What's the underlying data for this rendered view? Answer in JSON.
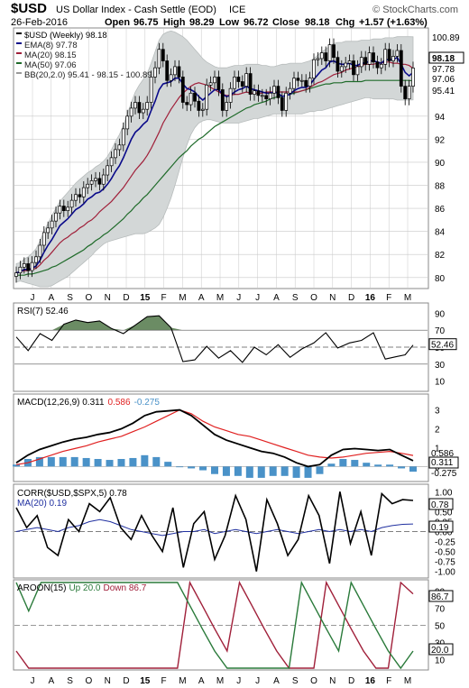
{
  "header": {
    "symbol": "$USD",
    "name": "US Dollar Index - Cash Settle (EOD)",
    "exchange": "ICE",
    "watermark": "© StockCharts.com",
    "date": "26-Feb-2016",
    "open_label": "Open",
    "open": "96.75",
    "high_label": "High",
    "high": "98.29",
    "low_label": "Low",
    "low": "96.72",
    "close_label": "Close",
    "close": "98.18",
    "chg_label": "Chg",
    "chg": "+1.57 (+1.63%)"
  },
  "colors": {
    "ema8": "#0a0a8a",
    "ma20": "#a0203a",
    "ma50": "#1f6b2a",
    "bb": "#b7bcbc",
    "macd_signal": "#e02020",
    "histogram": "#4a92c8",
    "rsi_fill": "#6b8c64",
    "corr_ma": "#2030a0",
    "aroon_up": "#2a7a3a",
    "aroon_down": "#a0203a",
    "grid": "#c8c8c8"
  },
  "chart_data": [
    {
      "type": "candlestick",
      "title": "$USD (Weekly) 98.18",
      "x_tick_labels": [
        "J",
        "A",
        "S",
        "O",
        "N",
        "D",
        "15",
        "F",
        "M",
        "A",
        "M",
        "J",
        "J",
        "A",
        "S",
        "O",
        "N",
        "D",
        "16",
        "F",
        "M"
      ],
      "y_ticks": [
        80,
        82,
        84,
        86,
        88,
        90,
        92,
        94
      ],
      "ylim": [
        79.2,
        101.5
      ],
      "legend": [
        {
          "name": "$USD (Weekly) 98.18",
          "color": "#000000"
        },
        {
          "name": "EMA(8) 97.78",
          "color": "#0a0a8a"
        },
        {
          "name": "MA(20) 98.15",
          "color": "#a0203a"
        },
        {
          "name": "MA(50) 97.06",
          "color": "#1f6b2a"
        },
        {
          "name": "BB(20,2.0) 95.41 - 98.15 - 100.89",
          "color": "#9a9a9a"
        }
      ],
      "last_value_tags": [
        {
          "label": "100.89",
          "value": 100.89,
          "style": "plain"
        },
        {
          "label": "98.18",
          "value": 98.18,
          "style": "boxed"
        },
        {
          "label": "97.78",
          "value": 97.78,
          "style": "plain"
        },
        {
          "label": "97.06",
          "value": 97.06,
          "style": "plain"
        },
        {
          "label": "95.41",
          "value": 95.41,
          "style": "plain"
        }
      ],
      "close": [
        80.4,
        80.9,
        81.2,
        80.6,
        81.3,
        81.8,
        82.8,
        83.9,
        84.3,
        84.9,
        85.6,
        86.2,
        85.8,
        86.1,
        86.7,
        87.2,
        87.0,
        87.8,
        88.1,
        88.4,
        88.6,
        88.1,
        88.9,
        89.7,
        90.4,
        91.1,
        91.5,
        92.9,
        94.0,
        94.7,
        95.2,
        94.3,
        94.6,
        95.2,
        97.4,
        98.2,
        99.8,
        98.8,
        97.1,
        97.6,
        98.3,
        97.4,
        95.2,
        95.0,
        96.0,
        95.3,
        94.5,
        94.6,
        96.7,
        96.9,
        97.4,
        96.3,
        94.5,
        95.2,
        96.4,
        97.4,
        97.0,
        96.6,
        97.7,
        95.9,
        96.2,
        95.8,
        95.8,
        95.5,
        96.0,
        96.6,
        95.6,
        94.5,
        96.0,
        96.4,
        97.3,
        97.1,
        97.1,
        96.6,
        97.3,
        98.9,
        99.0,
        99.5,
        98.8,
        100.2,
        99.1,
        97.9,
        98.3,
        98.6,
        98.8,
        97.6,
        98.3,
        99.1,
        98.5,
        99.5,
        98.7,
        98.2,
        98.5,
        99.8,
        98.8,
        99.2,
        99.7,
        96.6,
        95.5,
        96.6,
        98.18
      ],
      "ema8": [
        80.4,
        80.5,
        80.7,
        80.7,
        80.8,
        81.0,
        81.5,
        82.2,
        82.8,
        83.3,
        83.9,
        84.5,
        84.8,
        85.1,
        85.5,
        85.9,
        86.1,
        86.4,
        86.8,
        87.0,
        87.3,
        87.4,
        87.7,
        88.1,
        88.6,
        89.2,
        89.7,
        90.4,
        91.2,
        92.0,
        92.6,
        92.9,
        93.3,
        93.6,
        94.5,
        95.3,
        96.3,
        96.8,
        96.9,
        97.0,
        97.3,
        97.3,
        96.8,
        96.4,
        96.3,
        96.1,
        95.7,
        95.4,
        95.7,
        96.0,
        96.3,
        96.3,
        95.9,
        95.7,
        95.8,
        96.1,
        96.3,
        96.4,
        96.6,
        96.4,
        96.3,
        96.2,
        96.1,
        96.0,
        96.0,
        96.1,
        96.0,
        95.7,
        95.8,
        95.9,
        96.2,
        96.4,
        96.5,
        96.5,
        96.7,
        97.2,
        97.6,
        98.0,
        98.2,
        98.7,
        98.8,
        98.6,
        98.5,
        98.5,
        98.6,
        98.4,
        98.4,
        98.6,
        98.6,
        98.8,
        98.8,
        98.7,
        98.6,
        98.9,
        98.9,
        98.9,
        99.1,
        98.5,
        97.8,
        97.5,
        97.8
      ],
      "ma20": [
        80.4,
        80.5,
        80.6,
        80.6,
        80.7,
        80.8,
        81.1,
        81.5,
        81.8,
        82.2,
        82.6,
        83.0,
        83.3,
        83.5,
        83.8,
        84.0,
        84.3,
        84.5,
        84.8,
        85.0,
        85.3,
        85.7,
        86.0,
        86.3,
        86.6,
        87.0,
        87.4,
        87.8,
        88.3,
        88.8,
        89.3,
        89.7,
        90.1,
        90.6,
        91.2,
        91.9,
        92.6,
        93.4,
        94.0,
        94.6,
        95.1,
        95.6,
        96.0,
        96.3,
        96.6,
        96.8,
        96.9,
        96.8,
        96.7,
        96.5,
        96.3,
        96.1,
        95.9,
        95.8,
        95.8,
        95.9,
        95.9,
        96.0,
        96.1,
        96.0,
        96.0,
        96.0,
        96.0,
        96.1,
        96.1,
        96.1,
        96.1,
        96.1,
        96.1,
        96.1,
        96.1,
        96.1,
        96.2,
        96.3,
        96.5,
        96.7,
        96.9,
        97.0,
        97.2,
        97.4,
        97.6,
        97.7,
        97.8,
        98.0,
        98.1,
        98.2,
        98.3,
        98.4,
        98.5,
        98.5,
        98.5,
        98.6,
        98.6,
        98.7,
        98.7,
        98.6,
        98.6,
        98.5,
        98.5,
        98.4,
        98.15
      ],
      "ma50": [
        80.2,
        80.2,
        80.2,
        80.3,
        80.3,
        80.4,
        80.5,
        80.6,
        80.7,
        80.9,
        81.0,
        81.2,
        81.4,
        81.6,
        81.8,
        82.0,
        82.2,
        82.4,
        82.7,
        82.9,
        83.2,
        83.4,
        83.7,
        83.9,
        84.2,
        84.5,
        84.8,
        85.1,
        85.5,
        85.8,
        86.2,
        86.5,
        86.9,
        87.2,
        87.6,
        88.0,
        88.4,
        88.8,
        89.2,
        89.6,
        90.0,
        90.4,
        90.7,
        91.0,
        91.4,
        91.7,
        92.0,
        92.2,
        92.5,
        92.8,
        93.1,
        93.3,
        93.5,
        93.7,
        93.9,
        94.1,
        94.3,
        94.5,
        94.7,
        94.8,
        95.0,
        95.1,
        95.2,
        95.3,
        95.5,
        95.6,
        95.7,
        95.7,
        95.8,
        95.9,
        96.0,
        96.1,
        96.2,
        96.3,
        96.4,
        96.5,
        96.6,
        96.7,
        96.8,
        96.8,
        96.9,
        96.9,
        96.9,
        97.0,
        97.0,
        97.0,
        97.0,
        97.0,
        97.1,
        97.1,
        97.1,
        97.1,
        97.1,
        97.1,
        97.1,
        97.1,
        97.1,
        97.1,
        97.1,
        97.1,
        97.06
      ],
      "bb_upper": [
        81.2,
        81.3,
        81.6,
        81.8,
        82.1,
        82.5,
        83.2,
        84.0,
        84.7,
        85.4,
        86.0,
        86.6,
        87.0,
        87.4,
        87.8,
        88.2,
        88.5,
        88.8,
        89.1,
        89.3,
        89.6,
        89.8,
        90.1,
        90.5,
        91.1,
        91.8,
        92.4,
        93.2,
        94.2,
        95.2,
        96.1,
        96.7,
        97.2,
        97.7,
        98.6,
        99.6,
        100.6,
        101.1,
        101.3,
        101.4,
        101.3,
        101.1,
        100.9,
        100.6,
        100.2,
        99.8,
        99.4,
        99.0,
        98.7,
        98.5,
        98.3,
        98.2,
        98.2,
        98.2,
        98.3,
        98.4,
        98.4,
        98.4,
        98.5,
        98.5,
        98.5,
        98.5,
        98.4,
        98.4,
        98.3,
        98.3,
        98.4,
        98.5,
        98.5,
        98.6,
        98.6,
        98.6,
        98.6,
        98.7,
        98.8,
        99.0,
        99.3,
        99.6,
        99.8,
        100.1,
        100.3,
        100.4,
        100.4,
        100.5,
        100.5,
        100.5,
        100.5,
        100.6,
        100.6,
        100.6,
        100.7,
        100.7,
        100.7,
        100.8,
        100.8,
        100.8,
        100.9,
        100.9,
        100.9,
        100.9,
        100.89
      ],
      "bb_lower": [
        79.6,
        79.7,
        79.6,
        79.5,
        79.4,
        79.3,
        79.2,
        79.2,
        79.2,
        79.3,
        79.5,
        79.7,
        79.9,
        80.1,
        80.4,
        80.7,
        81.0,
        81.3,
        81.6,
        81.9,
        82.3,
        82.6,
        82.9,
        83.1,
        83.2,
        83.3,
        83.4,
        83.5,
        83.6,
        83.7,
        83.8,
        83.8,
        83.8,
        83.9,
        84.1,
        84.3,
        84.6,
        85.2,
        86.0,
        86.9,
        88.0,
        89.2,
        90.4,
        91.5,
        92.4,
        93.0,
        93.4,
        93.6,
        93.7,
        93.7,
        93.6,
        93.5,
        93.4,
        93.4,
        93.4,
        93.4,
        93.4,
        93.5,
        93.6,
        93.7,
        93.8,
        93.8,
        93.9,
        94.0,
        94.1,
        94.2,
        94.2,
        94.2,
        94.2,
        94.2,
        94.2,
        94.2,
        94.2,
        94.3,
        94.4,
        94.4,
        94.5,
        94.5,
        94.6,
        94.7,
        94.8,
        94.9,
        95.0,
        95.1,
        95.2,
        95.3,
        95.4,
        95.5,
        95.6,
        95.6,
        95.5,
        95.5,
        95.5,
        95.5,
        95.5,
        95.5,
        95.4,
        95.4,
        95.4,
        95.4,
        95.41
      ]
    },
    {
      "type": "line",
      "title": "RSI(7) 52.46",
      "ylim": [
        0,
        100
      ],
      "y_ticks": [
        10,
        30,
        50,
        70,
        90
      ],
      "reference_lines": [
        70,
        50,
        30
      ],
      "last_label": "52.46",
      "x": [
        0,
        3,
        6,
        9,
        12,
        15,
        18,
        21,
        24,
        27,
        30,
        33,
        36,
        39,
        42,
        45,
        48,
        51,
        54,
        57,
        60,
        63,
        66,
        69,
        72,
        75,
        78,
        81,
        84,
        87,
        90,
        93,
        96,
        98,
        100
      ],
      "values": [
        62,
        46,
        66,
        58,
        77,
        82,
        79,
        81,
        72,
        66,
        76,
        86,
        87,
        73,
        33,
        35,
        51,
        37,
        46,
        32,
        50,
        41,
        53,
        38,
        48,
        55,
        67,
        49,
        55,
        58,
        67,
        36,
        39,
        41,
        52.46
      ]
    },
    {
      "type": "line",
      "title": "MACD(12,26,9)",
      "series": [
        {
          "name": "MACD(12,26,9) 0.311",
          "values": [
            0.2,
            0.6,
            0.9,
            1.1,
            1.3,
            1.45,
            1.55,
            1.7,
            1.8,
            2.0,
            2.3,
            2.7,
            2.9,
            2.95,
            3.0,
            2.7,
            2.2,
            1.7,
            1.4,
            1.2,
            1.0,
            0.8,
            0.7,
            0.5,
            0.2,
            0.0,
            0.1,
            0.6,
            0.9,
            0.95,
            0.9,
            0.85,
            0.9,
            0.6,
            0.311
          ]
        },
        {
          "name": "0.586",
          "values": [
            0.1,
            0.2,
            0.4,
            0.6,
            0.8,
            0.95,
            1.1,
            1.3,
            1.45,
            1.6,
            1.85,
            2.1,
            2.4,
            2.7,
            3.0,
            2.8,
            2.4,
            2.1,
            1.9,
            1.7,
            1.6,
            1.4,
            1.2,
            1.0,
            0.8,
            0.6,
            0.5,
            0.45,
            0.5,
            0.6,
            0.7,
            0.75,
            0.8,
            0.7,
            0.586
          ]
        },
        {
          "name": "-0.275",
          "values": [
            0.1,
            0.4,
            0.5,
            0.5,
            0.5,
            0.5,
            0.45,
            0.4,
            0.35,
            0.4,
            0.45,
            0.6,
            0.5,
            0.25,
            0.0,
            -0.1,
            -0.2,
            -0.4,
            -0.5,
            -0.5,
            -0.6,
            -0.6,
            -0.5,
            -0.5,
            -0.6,
            -0.6,
            -0.4,
            0.15,
            0.4,
            0.35,
            0.2,
            0.1,
            0.1,
            -0.1,
            -0.275
          ]
        }
      ],
      "ylim": [
        -0.7,
        3.7
      ],
      "y_ticks": [
        0,
        1,
        2,
        3
      ],
      "last_labels": [
        "0.586",
        "0.311",
        "-0.275"
      ]
    },
    {
      "type": "line",
      "title": "CORR($USD,$SPX,5)",
      "series": [
        {
          "name": "CORR($USD,$SPX,5) 0.78",
          "values": [
            0.6,
            0.1,
            0.4,
            -0.4,
            -0.6,
            0.3,
            0.0,
            0.7,
            0.5,
            0.85,
            0.1,
            -0.2,
            0.4,
            -0.1,
            -0.5,
            0.6,
            -0.9,
            0.2,
            0.5,
            -0.7,
            -0.1,
            0.9,
            0.3,
            -1.0,
            0.8,
            0.2,
            -0.6,
            -0.2,
            0.9,
            0.4,
            -0.8,
            1.0,
            -0.3,
            0.5,
            -0.6,
            0.95,
            0.7,
            0.8,
            0.78
          ]
        },
        {
          "name": "MA(20) 0.19",
          "values": [
            0.0,
            0.05,
            0.1,
            0.05,
            0.0,
            0.1,
            0.15,
            0.25,
            0.3,
            0.25,
            0.15,
            0.05,
            0.0,
            -0.05,
            -0.1,
            -0.05,
            0.0,
            0.0,
            0.05,
            -0.05,
            0.0,
            0.05,
            0.0,
            -0.05,
            0.0,
            0.05,
            0.0,
            -0.05,
            0.0,
            0.05,
            0.0,
            0.05,
            0.0,
            0.05,
            0.0,
            0.1,
            0.15,
            0.18,
            0.19
          ]
        }
      ],
      "ylim": [
        -1.12,
        1.12
      ],
      "y_ticks": [
        1.0,
        0.75,
        0.5,
        0.25,
        0.0,
        -0.25,
        -0.5,
        -0.75,
        -1.0
      ],
      "y_tick_labels": [
        "1.00",
        "0.75",
        "0.50",
        "0.25",
        "0.00",
        "-0.25",
        "-0.50",
        "-0.75",
        "-1.00"
      ],
      "last_labels": [
        "0.78",
        "0.19"
      ]
    },
    {
      "type": "line",
      "title": "AROON(15)",
      "series": [
        {
          "name": "Up 20.0",
          "values": [
            100,
            66.7,
            100,
            100,
            100,
            100,
            100,
            100,
            100,
            100,
            100,
            100,
            100,
            100,
            73,
            46,
            20,
            0,
            0,
            0,
            0,
            0,
            0,
            100,
            73,
            46,
            20,
            100,
            73,
            46,
            20,
            0,
            20.0
          ]
        },
        {
          "name": "Down 86.7",
          "values": [
            20,
            0,
            0,
            0,
            0,
            0,
            0,
            0,
            0,
            0,
            0,
            0,
            0,
            0,
            100,
            73,
            46,
            20,
            100,
            73,
            46,
            20,
            0,
            0,
            0,
            100,
            73,
            46,
            20,
            0,
            0,
            100,
            86.7
          ]
        }
      ],
      "ylim": [
        0,
        100
      ],
      "y_ticks": [
        10,
        30,
        50,
        70,
        90
      ],
      "last_labels": [
        "86.7",
        "20.0"
      ]
    }
  ]
}
